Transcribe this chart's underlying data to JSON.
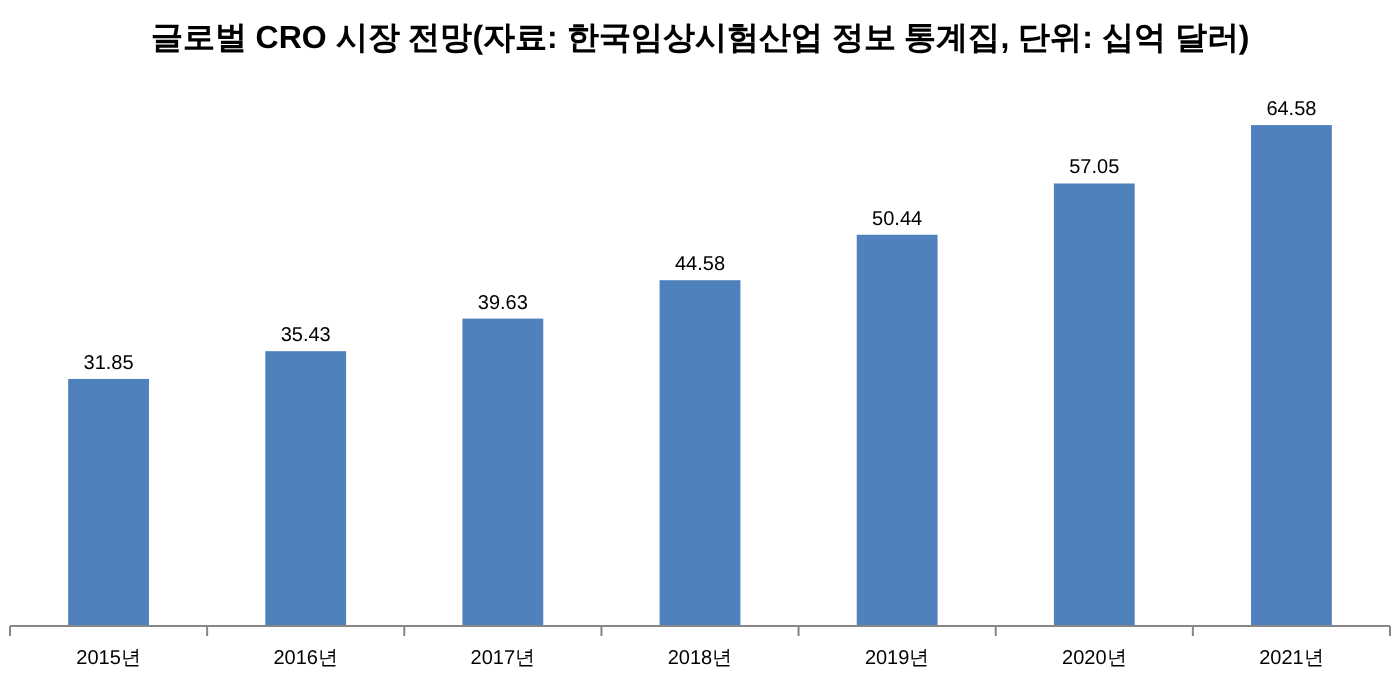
{
  "chart_data": {
    "type": "bar",
    "title": "글로벌 CRO 시장 전망(자료: 한국임상시험산업 정보 통계집, 단위: 십억 달러)",
    "categories": [
      "2015년",
      "2016년",
      "2017년",
      "2018년",
      "2019년",
      "2020년",
      "2021년"
    ],
    "values": [
      31.85,
      35.43,
      39.63,
      44.58,
      50.44,
      57.05,
      64.58
    ],
    "color": "#4f81bd",
    "data_labels": true
  }
}
